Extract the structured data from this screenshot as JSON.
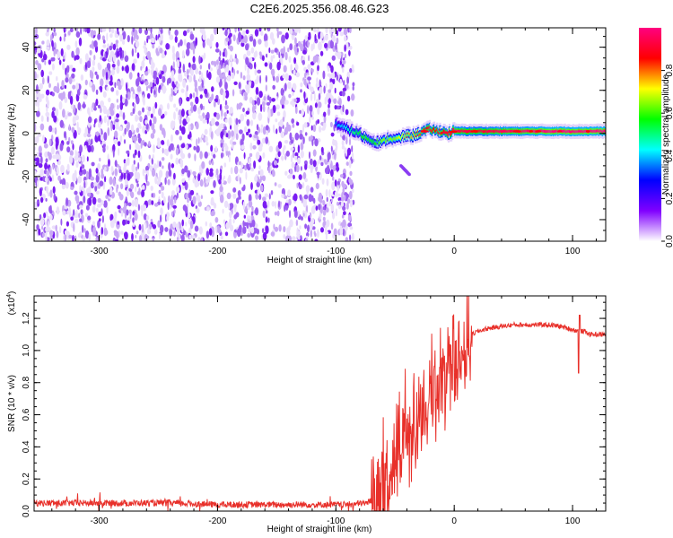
{
  "chart_data": [
    {
      "type": "heatmap",
      "title": "C2E6.2025.356.08.46.G23",
      "xlabel": "Height of straight line (km)",
      "ylabel": "Frequency (Hz)",
      "xlim": [
        -355,
        128
      ],
      "ylim": [
        -50,
        49
      ],
      "xticks": [
        -300,
        -200,
        -100,
        0,
        100
      ],
      "yticks": [
        -40,
        -20,
        0,
        20,
        40
      ],
      "colorbar": {
        "label": "Normalized spectral amplitude",
        "range": [
          0,
          1
        ],
        "ticks": [
          "0.0",
          "0.2",
          "0.4",
          "0.6",
          "0.8"
        ],
        "tick_values": [
          0.0,
          0.2,
          0.4,
          0.6,
          0.8
        ],
        "colors": [
          "#ffffff",
          "#8000ff",
          "#0000ff",
          "#00ffff",
          "#00ff00",
          "#ffff00",
          "#ff0000",
          "#ff0080"
        ]
      },
      "noise_region": {
        "x_from": -355,
        "x_to": -85,
        "amplitude": 0.12
      },
      "signal_trace": {
        "x": [
          -100,
          -95,
          -90,
          -85,
          -80,
          -75,
          -70,
          -65,
          -60,
          -55,
          -50,
          -45,
          -40,
          -35,
          -30,
          -25,
          -20,
          -15,
          -10,
          -5,
          0,
          20,
          40,
          60,
          80,
          100,
          128
        ],
        "freq": [
          5,
          3,
          2,
          1,
          0,
          -2,
          -3,
          -4,
          -4,
          -2,
          -3,
          -2,
          -1,
          -1,
          0,
          1,
          2,
          1,
          1,
          0,
          1,
          1,
          1,
          1,
          1,
          1,
          1
        ],
        "amplitude": [
          0.3,
          0.35,
          0.4,
          0.45,
          0.5,
          0.55,
          0.5,
          0.55,
          0.6,
          0.6,
          0.6,
          0.65,
          0.7,
          0.7,
          0.75,
          0.8,
          0.85,
          0.8,
          0.8,
          0.85,
          0.9,
          0.85,
          0.9,
          0.92,
          0.95,
          0.95,
          0.95
        ]
      },
      "side_streak": {
        "x": [
          -45,
          -38
        ],
        "freq": [
          -15,
          -19
        ]
      }
    },
    {
      "type": "line",
      "xlabel": "Height of straight line (km)",
      "ylabel": "SNR (10 * v/v)",
      "scale_label": "(x10",
      "scale_exp": "4",
      "xlim": [
        -355,
        128
      ],
      "ylim": [
        0,
        1.34
      ],
      "xticks": [
        -300,
        -200,
        -100,
        0,
        100
      ],
      "yticks": [
        0.0,
        0.2,
        0.4,
        0.6,
        0.8,
        1.0,
        1.2
      ],
      "ytick_labels": [
        "0.0",
        "0.2",
        "0.4",
        "0.6",
        "0.8",
        "1.0",
        "1.2"
      ],
      "color": "#e8302a",
      "series": [
        {
          "name": "SNR",
          "x": [
            -355,
            -320,
            -280,
            -240,
            -200,
            -160,
            -120,
            -90,
            -75,
            -65,
            -60,
            -55,
            -50,
            -45,
            -40,
            -35,
            -30,
            -25,
            -20,
            -15,
            -10,
            -5,
            0,
            5,
            10,
            15,
            20,
            25,
            30,
            40,
            50,
            60,
            70,
            80,
            90,
            100,
            105,
            110,
            115,
            120,
            128
          ],
          "y": [
            0.05,
            0.05,
            0.05,
            0.05,
            0.04,
            0.04,
            0.04,
            0.04,
            0.05,
            0.08,
            0.12,
            0.2,
            0.3,
            0.38,
            0.46,
            0.52,
            0.58,
            0.65,
            0.7,
            0.76,
            0.82,
            0.86,
            0.92,
            1.0,
            1.06,
            1.1,
            1.12,
            1.13,
            1.14,
            1.15,
            1.16,
            1.16,
            1.16,
            1.16,
            1.15,
            1.13,
            1.12,
            1.12,
            1.1,
            1.1,
            1.1
          ]
        }
      ]
    }
  ]
}
